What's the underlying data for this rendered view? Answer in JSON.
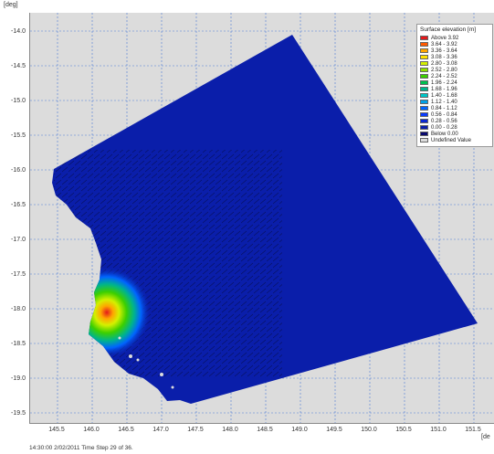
{
  "axes": {
    "y_unit": "[deg]",
    "x_unit": "[de",
    "y_ticks": [
      "-14.0",
      "-14.5",
      "-15.0",
      "-15.5",
      "-16.0",
      "-16.5",
      "-17.0",
      "-17.5",
      "-18.0",
      "-18.5",
      "-19.0",
      "-19.5"
    ],
    "x_ticks": [
      "145.5",
      "146.0",
      "146.5",
      "147.0",
      "147.5",
      "148.0",
      "148.5",
      "149.0",
      "149.5",
      "150.0",
      "150.5",
      "151.0",
      "151.5"
    ],
    "grid": true
  },
  "legend": {
    "title": "Surface elevation [m]",
    "items": [
      {
        "label": "Above 3.92",
        "color": "#e31a1c"
      },
      {
        "label": "3.64 - 3.92",
        "color": "#ff5a00"
      },
      {
        "label": "3.36 - 3.64",
        "color": "#ffa500"
      },
      {
        "label": "3.08 - 3.36",
        "color": "#ffe100"
      },
      {
        "label": "2.80 - 3.08",
        "color": "#d4f000"
      },
      {
        "label": "2.52 - 2.80",
        "color": "#8fe000"
      },
      {
        "label": "2.24 - 2.52",
        "color": "#3ccf00"
      },
      {
        "label": "1.96 - 2.24",
        "color": "#00c050"
      },
      {
        "label": "1.68 - 1.96",
        "color": "#00b48c"
      },
      {
        "label": "1.40 - 1.68",
        "color": "#00c8c8"
      },
      {
        "label": "1.12 - 1.40",
        "color": "#00a0e6"
      },
      {
        "label": "0.84 - 1.12",
        "color": "#0064ff"
      },
      {
        "label": "0.56 - 0.84",
        "color": "#0a3cff"
      },
      {
        "label": "0.28 - 0.56",
        "color": "#0a28d2"
      },
      {
        "label": "0.00 - 0.28",
        "color": "#0a1eaa"
      },
      {
        "label": "Below 0.00",
        "color": "#0a0a6e"
      },
      {
        "label": "Undefined Value",
        "color": "#dcdcdc"
      }
    ]
  },
  "status": {
    "text": "14:30:00 2/02/2011  Time Step 29 of 36."
  },
  "colors": {
    "domain_fill": "#0a1eaa",
    "background": "#dcdcdc",
    "grid": "#4a7ad8"
  }
}
